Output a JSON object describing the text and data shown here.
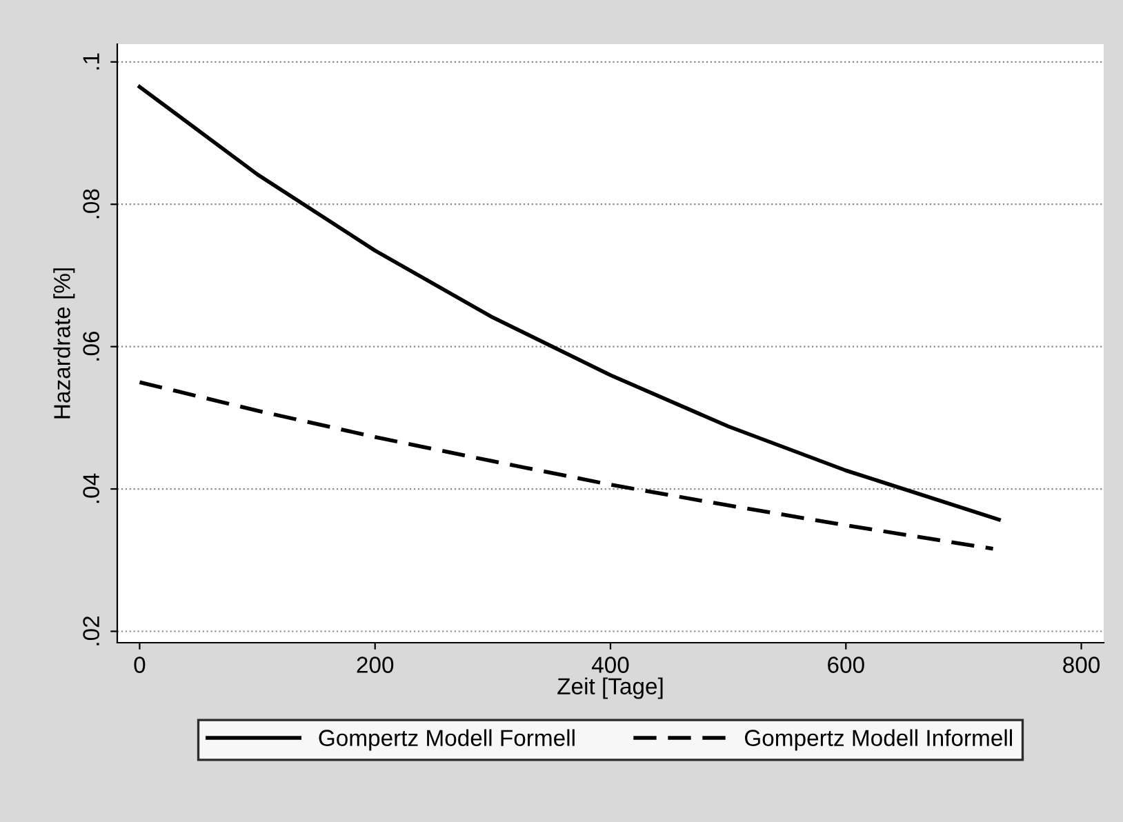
{
  "chart_data": {
    "type": "line",
    "xlabel": "Zeit [Tage]",
    "ylabel": "Hazardrate [%]",
    "x": [
      0,
      100,
      200,
      300,
      400,
      500,
      600,
      730
    ],
    "series": [
      {
        "name": "Gompertz Modell Formell",
        "color": "#000000",
        "line_style": "solid",
        "values": [
          0.0965,
          0.0842,
          0.0735,
          0.0641,
          0.056,
          0.0488,
          0.0426,
          0.0357
        ]
      },
      {
        "name": "Gompertz Modell Informell",
        "color": "#000000",
        "line_style": "dashed",
        "x": [
          0,
          100,
          200,
          300,
          400,
          500,
          600,
          725
        ],
        "values": [
          0.055,
          0.051,
          0.0473,
          0.0439,
          0.0406,
          0.0377,
          0.0349,
          0.0316
        ]
      }
    ],
    "xlim": [
      -19,
      819
    ],
    "ylim": [
      0.0184,
      0.1025
    ],
    "xticks": [
      0,
      200,
      400,
      600,
      800
    ],
    "yticks": [
      {
        "value": 0.02,
        "label": ".02"
      },
      {
        "value": 0.04,
        "label": ".04"
      },
      {
        "value": 0.06,
        "label": ".06"
      },
      {
        "value": 0.08,
        "label": ".08"
      },
      {
        "value": 0.1,
        "label": ".1"
      }
    ],
    "grid": "y",
    "legend": "bottom",
    "marker": "none"
  }
}
